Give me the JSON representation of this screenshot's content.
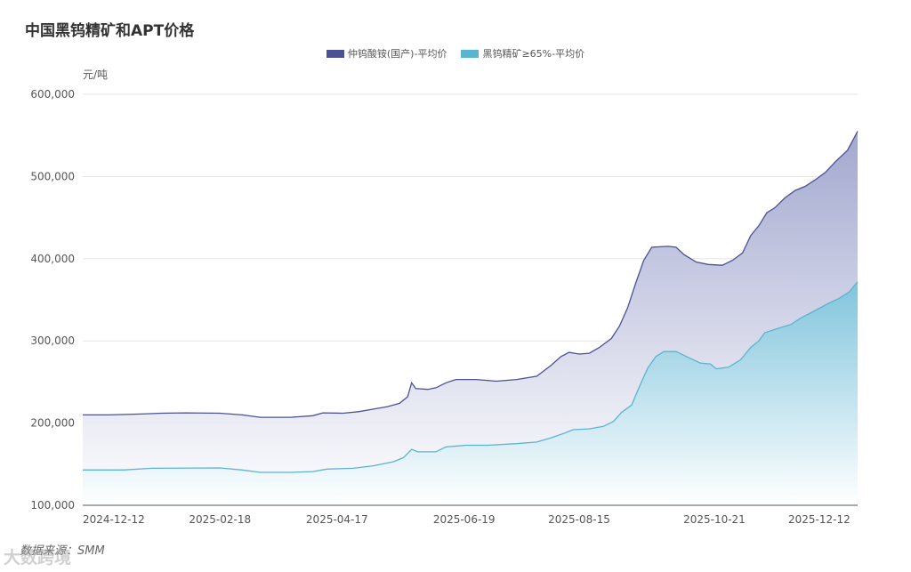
{
  "chart_data": {
    "type": "area",
    "title": "中国黑钨精矿和APT价格",
    "ylabel": "元/吨",
    "ylim": [
      100000,
      600000
    ],
    "yticks": [
      100000,
      200000,
      300000,
      400000,
      500000,
      600000
    ],
    "ytick_labels": [
      "100,000",
      "200,000",
      "300,000",
      "400,000",
      "500,000",
      "600,000"
    ],
    "xticks": [
      "2024-12-12",
      "2025-02-18",
      "2025-04-17",
      "2025-06-19",
      "2025-08-15",
      "2025-10-21",
      "2025-12-12"
    ],
    "xlim": [
      "2024-12-12",
      "2025-12-31"
    ],
    "grid": true,
    "legend": "top-center",
    "series": [
      {
        "name": "仲钨酸铵(国产)-平均价",
        "color": "#4a5294",
        "points": [
          [
            "2024-12-12",
            210000
          ],
          [
            "2024-12-25",
            210000
          ],
          [
            "2025-01-10",
            211000
          ],
          [
            "2025-01-20",
            212000
          ],
          [
            "2025-02-01",
            212500
          ],
          [
            "2025-02-18",
            212000
          ],
          [
            "2025-03-01",
            210000
          ],
          [
            "2025-03-10",
            207000
          ],
          [
            "2025-03-25",
            207000
          ],
          [
            "2025-04-05",
            209000
          ],
          [
            "2025-04-10",
            212500
          ],
          [
            "2025-04-20",
            212000
          ],
          [
            "2025-04-28",
            214000
          ],
          [
            "2025-05-05",
            217000
          ],
          [
            "2025-05-12",
            220000
          ],
          [
            "2025-05-18",
            224000
          ],
          [
            "2025-05-22",
            232000
          ],
          [
            "2025-05-24",
            249000
          ],
          [
            "2025-05-26",
            242000
          ],
          [
            "2025-06-01",
            241000
          ],
          [
            "2025-06-05",
            243000
          ],
          [
            "2025-06-10",
            249000
          ],
          [
            "2025-06-15",
            253000
          ],
          [
            "2025-06-25",
            253000
          ],
          [
            "2025-07-05",
            251000
          ],
          [
            "2025-07-15",
            253000
          ],
          [
            "2025-07-25",
            257000
          ],
          [
            "2025-08-01",
            270000
          ],
          [
            "2025-08-06",
            281000
          ],
          [
            "2025-08-10",
            286000
          ],
          [
            "2025-08-15",
            284000
          ],
          [
            "2025-08-20",
            285000
          ],
          [
            "2025-08-25",
            292000
          ],
          [
            "2025-08-31",
            303000
          ],
          [
            "2025-09-04",
            318000
          ],
          [
            "2025-09-08",
            340000
          ],
          [
            "2025-09-12",
            370000
          ],
          [
            "2025-09-16",
            398000
          ],
          [
            "2025-09-20",
            414000
          ],
          [
            "2025-09-28",
            415000
          ],
          [
            "2025-10-02",
            414000
          ],
          [
            "2025-10-06",
            405000
          ],
          [
            "2025-10-12",
            396000
          ],
          [
            "2025-10-18",
            393000
          ],
          [
            "2025-10-25",
            392000
          ],
          [
            "2025-10-30",
            398000
          ],
          [
            "2025-11-04",
            407000
          ],
          [
            "2025-11-08",
            428000
          ],
          [
            "2025-11-12",
            440000
          ],
          [
            "2025-11-16",
            456000
          ],
          [
            "2025-11-20",
            462000
          ],
          [
            "2025-11-25",
            474000
          ],
          [
            "2025-11-30",
            483000
          ],
          [
            "2025-12-05",
            488000
          ],
          [
            "2025-12-10",
            496000
          ],
          [
            "2025-12-15",
            505000
          ],
          [
            "2025-12-20",
            518000
          ],
          [
            "2025-12-26",
            532000
          ],
          [
            "2025-12-31",
            555000
          ]
        ]
      },
      {
        "name": "黑钨精矿≥65%-平均价",
        "color": "#5ab4cf",
        "points": [
          [
            "2024-12-12",
            143000
          ],
          [
            "2025-01-01",
            143000
          ],
          [
            "2025-01-15",
            145000
          ],
          [
            "2025-02-18",
            145500
          ],
          [
            "2025-03-01",
            143000
          ],
          [
            "2025-03-10",
            140000
          ],
          [
            "2025-03-25",
            140000
          ],
          [
            "2025-04-05",
            141000
          ],
          [
            "2025-04-12",
            144000
          ],
          [
            "2025-04-25",
            145000
          ],
          [
            "2025-05-05",
            148000
          ],
          [
            "2025-05-15",
            153000
          ],
          [
            "2025-05-20",
            158000
          ],
          [
            "2025-05-24",
            168000
          ],
          [
            "2025-05-27",
            165000
          ],
          [
            "2025-06-05",
            165000
          ],
          [
            "2025-06-10",
            171000
          ],
          [
            "2025-06-20",
            173000
          ],
          [
            "2025-07-01",
            173000
          ],
          [
            "2025-07-15",
            175000
          ],
          [
            "2025-07-25",
            177000
          ],
          [
            "2025-08-01",
            182000
          ],
          [
            "2025-08-08",
            188000
          ],
          [
            "2025-08-12",
            192000
          ],
          [
            "2025-08-20",
            193000
          ],
          [
            "2025-08-27",
            196000
          ],
          [
            "2025-09-01",
            202000
          ],
          [
            "2025-09-05",
            213000
          ],
          [
            "2025-09-10",
            222000
          ],
          [
            "2025-09-14",
            245000
          ],
          [
            "2025-09-18",
            267000
          ],
          [
            "2025-09-22",
            281000
          ],
          [
            "2025-09-26",
            287000
          ],
          [
            "2025-10-02",
            287000
          ],
          [
            "2025-10-08",
            280000
          ],
          [
            "2025-10-14",
            273000
          ],
          [
            "2025-10-19",
            272000
          ],
          [
            "2025-10-22",
            266000
          ],
          [
            "2025-10-28",
            268000
          ],
          [
            "2025-11-03",
            277000
          ],
          [
            "2025-11-08",
            292000
          ],
          [
            "2025-11-12",
            300000
          ],
          [
            "2025-11-15",
            310000
          ],
          [
            "2025-11-20",
            314000
          ],
          [
            "2025-11-28",
            320000
          ],
          [
            "2025-12-03",
            328000
          ],
          [
            "2025-12-10",
            337000
          ],
          [
            "2025-12-16",
            345000
          ],
          [
            "2025-12-22",
            352000
          ],
          [
            "2025-12-27",
            360000
          ],
          [
            "2025-12-31",
            372000
          ]
        ]
      }
    ],
    "source": "数据来源：SMM"
  },
  "watermark": "大数跨境"
}
